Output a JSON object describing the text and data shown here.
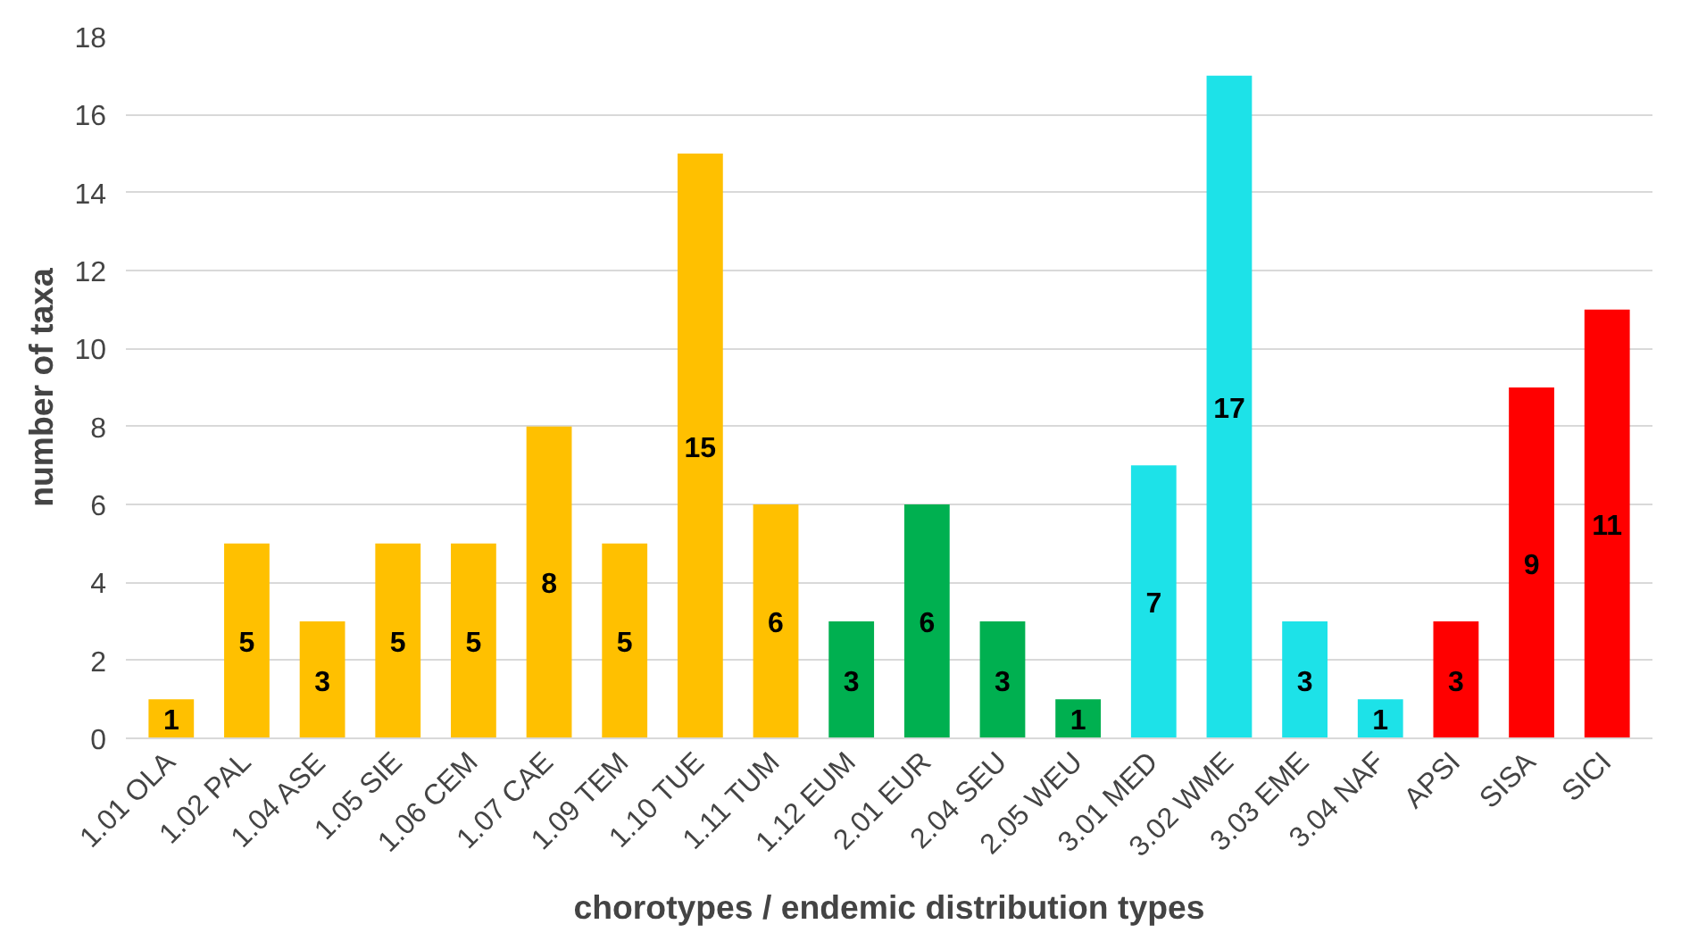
{
  "chart_data": {
    "type": "bar",
    "xlabel": "chorotypes / endemic distribution types",
    "ylabel": "number of taxa",
    "categories": [
      "1.01 OLA",
      "1.02 PAL",
      "1.04 ASE",
      "1.05 SIE",
      "1.06 CEM",
      "1.07 CAE",
      "1.09 TEM",
      "1.10 TUE",
      "1.11 TUM",
      "1.12 EUM",
      "2.01 EUR",
      "2.04 SEU",
      "2.05 WEU",
      "3.01 MED",
      "3.02 WME",
      "3.03 EME",
      "3.04 NAF",
      "APSI",
      "SISA",
      "SICI"
    ],
    "values": [
      1,
      5,
      3,
      5,
      5,
      8,
      5,
      15,
      6,
      3,
      6,
      3,
      1,
      7,
      17,
      3,
      1,
      3,
      9,
      11
    ],
    "colors": [
      "#ffc000",
      "#ffc000",
      "#ffc000",
      "#ffc000",
      "#ffc000",
      "#ffc000",
      "#ffc000",
      "#ffc000",
      "#ffc000",
      "#00b050",
      "#00b050",
      "#00b050",
      "#00b050",
      "#1de2e8",
      "#1de2e8",
      "#1de2e8",
      "#1de2e8",
      "#ff0000",
      "#ff0000",
      "#ff0000"
    ],
    "ylim": [
      0,
      18
    ],
    "yticks": [
      0,
      2,
      4,
      6,
      8,
      10,
      12,
      14,
      16,
      18
    ],
    "grid": "y",
    "data_labels": true
  }
}
